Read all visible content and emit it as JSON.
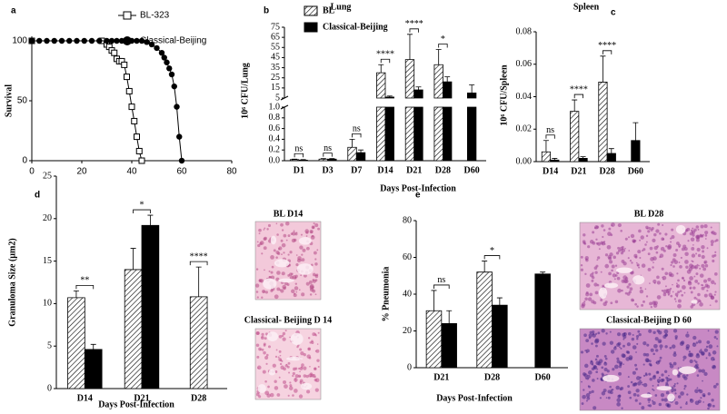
{
  "chart_data": [
    {
      "panel": "a",
      "type": "line",
      "ylabel": "Survival",
      "xlim": [
        0,
        80
      ],
      "xticks": [
        0,
        20,
        40,
        60,
        80
      ],
      "ylim": [
        0,
        100
      ],
      "yticks": [
        0,
        50,
        100
      ],
      "legend": "upper-right",
      "series": [
        {
          "name": "BL-323",
          "color": "#000000",
          "marker": "square-open",
          "x": [
            0,
            28,
            30,
            31,
            32,
            33,
            34,
            35,
            36,
            37,
            38,
            39,
            40,
            41,
            42,
            43,
            44
          ],
          "values": [
            100,
            100,
            97,
            95,
            92,
            90,
            85,
            83,
            83,
            80,
            70,
            58,
            45,
            33,
            20,
            8,
            0
          ]
        },
        {
          "name": "Classical-Beijing",
          "color": "#000000",
          "marker": "circle",
          "x": [
            0,
            3,
            6,
            9,
            12,
            15,
            18,
            21,
            24,
            27,
            30,
            32,
            34,
            36,
            38,
            40,
            42,
            44,
            46,
            48,
            50,
            52,
            53,
            54,
            55,
            56,
            57,
            58,
            59,
            60
          ],
          "values": [
            100,
            100,
            100,
            100,
            100,
            100,
            100,
            100,
            100,
            100,
            100,
            100,
            100,
            100,
            100,
            100,
            100,
            100,
            99,
            97,
            94,
            90,
            86,
            82,
            77,
            72,
            62,
            45,
            20,
            0
          ]
        }
      ]
    },
    {
      "panel": "b",
      "type": "bar",
      "title": "Lung",
      "ylabel": "10⁶ CFU/Lung",
      "xlabel": "Days Post-Infection",
      "legend": "upper-left",
      "categories": [
        "D1",
        "D3",
        "D7",
        "D14",
        "D21",
        "D28",
        "D60"
      ],
      "ylim": [
        0,
        75
      ],
      "ybreak": [
        1,
        5
      ],
      "yticks": [
        {
          "value": 0,
          "label": "0.0"
        },
        0.2,
        0.4,
        0.6,
        0.8,
        {
          "value": 1,
          "label": "1.0"
        },
        5,
        15,
        25,
        35,
        45,
        55,
        65,
        75
      ],
      "series": [
        {
          "name": "BL",
          "color": "#000000",
          "fill": "hatch",
          "values": [
            0.02,
            0.03,
            0.25,
            30,
            43,
            38,
            null
          ],
          "errors": [
            0.01,
            0.01,
            0.15,
            8,
            25,
            15,
            null
          ]
        },
        {
          "name": "Classical-Beijing",
          "color": "#000000",
          "fill": "solid",
          "values": [
            0.01,
            0.03,
            0.15,
            6,
            13,
            21,
            10
          ],
          "errors": [
            0.01,
            0.01,
            0.05,
            1,
            3,
            5,
            8
          ]
        }
      ],
      "significance": [
        "ns",
        "ns",
        "ns",
        "****",
        "****",
        "*",
        null
      ]
    },
    {
      "panel": "c",
      "type": "bar",
      "title": "Spleen",
      "ylabel": "10⁶ CFU/Spleen",
      "categories": [
        "D14",
        "D21",
        "D28",
        "D60"
      ],
      "ylim": [
        0,
        0.08
      ],
      "yticks": [
        {
          "value": 0,
          "label": "0.00"
        },
        0.02,
        0.04,
        0.06,
        0.08
      ],
      "series": [
        {
          "color": "#000000",
          "fill": "hatch",
          "values": [
            0.006,
            0.031,
            0.049,
            null
          ],
          "errors": [
            0.007,
            0.007,
            0.016,
            null
          ]
        },
        {
          "color": "#000000",
          "fill": "solid",
          "values": [
            0.001,
            0.002,
            0.005,
            0.013
          ],
          "errors": [
            0.001,
            0.001,
            0.003,
            0.011
          ]
        }
      ],
      "significance": [
        "ns",
        "****",
        "****",
        null
      ]
    },
    {
      "panel": "d",
      "type": "bar",
      "ylabel": "Granuloma Size (µm2)",
      "xlabel": "Days Post-Infection",
      "categories": [
        "D14",
        "D21",
        "D28"
      ],
      "ylim": [
        0,
        25
      ],
      "yticks": [
        0,
        5,
        10,
        15,
        20,
        25
      ],
      "series": [
        {
          "color": "#000000",
          "fill": "hatch",
          "values": [
            10.7,
            14,
            10.8
          ],
          "errors": [
            0.8,
            2.5,
            3.5
          ]
        },
        {
          "color": "#000000",
          "fill": "solid",
          "values": [
            4.6,
            19.2,
            null
          ],
          "errors": [
            0.6,
            1.2,
            null
          ]
        }
      ],
      "significance": [
        "**",
        "*",
        "****"
      ]
    },
    {
      "panel": "e",
      "type": "bar",
      "ylabel": "% Pneumonia",
      "xlabel": "Days Post-Infection",
      "categories": [
        "D21",
        "D28",
        "D60"
      ],
      "ylim": [
        0,
        80
      ],
      "yticks": [
        0,
        20,
        40,
        60,
        80
      ],
      "series": [
        {
          "color": "#000000",
          "fill": "hatch",
          "values": [
            31,
            52,
            null
          ],
          "errors": [
            11,
            6,
            null
          ]
        },
        {
          "color": "#000000",
          "fill": "solid",
          "values": [
            24,
            34,
            51
          ],
          "errors": [
            7,
            4,
            1
          ]
        }
      ],
      "significance": [
        "ns",
        "*",
        null
      ]
    }
  ],
  "images": [
    {
      "label": "BL D14"
    },
    {
      "label": "Classical- Beijing D 14"
    },
    {
      "label": "BL D28"
    },
    {
      "label": "Classical-Beijing D 60"
    }
  ]
}
